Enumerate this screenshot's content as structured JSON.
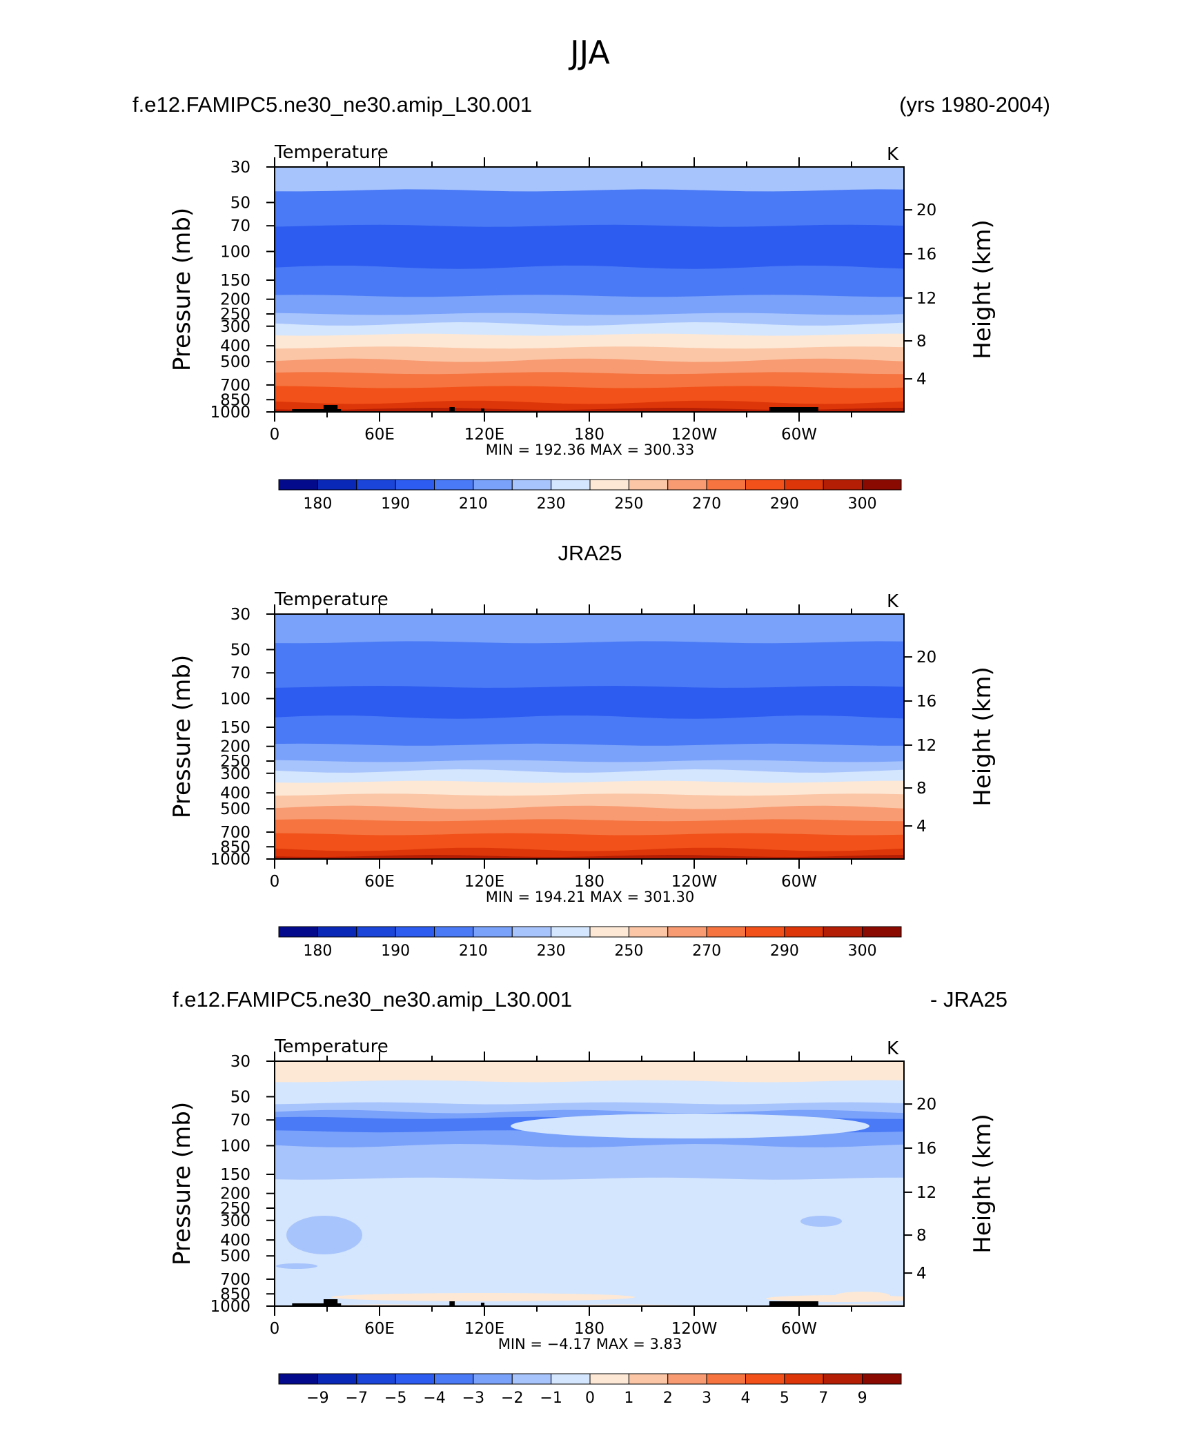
{
  "figure": {
    "season_title": "JJA"
  },
  "chart_data": [
    {
      "type": "heatmap",
      "header_left": "f.e12.FAMIPC5.ne30_ne30.amip_L30.001",
      "header_right": "(yrs 1980-2004)",
      "variable": "Temperature",
      "units": "K",
      "ylabel": "Pressure  (mb)",
      "ylabel_right": "Height  (km)",
      "xticks": [
        "0",
        "60E",
        "120E",
        "180",
        "120W",
        "60W"
      ],
      "pressure_ticks": [
        "30",
        "50",
        "70",
        "100",
        "150",
        "200",
        "250",
        "300",
        "400",
        "500",
        "700",
        "850",
        "1000"
      ],
      "height_ticks": [
        "20",
        "16",
        "12",
        "8",
        "4"
      ],
      "ylim_mb": [
        30,
        1000
      ],
      "stats_text": "MIN = 192.36   MAX = 300.33",
      "min": 192.36,
      "max": 300.33,
      "colorbar_labels": [
        "180",
        "190",
        "210",
        "230",
        "250",
        "270",
        "290",
        "300"
      ],
      "colorbar_colors": [
        "#030b8c",
        "#0a28b8",
        "#1a45d8",
        "#2d5cf0",
        "#4a7af6",
        "#7aa2fa",
        "#a8c4fc",
        "#d4e6fd",
        "#fde8d6",
        "#fbc6a6",
        "#f89b72",
        "#f5743f",
        "#f25119",
        "#dd3609",
        "#b41e04",
        "#8a0a02"
      ],
      "layers": [
        {
          "p": 30,
          "class": 6
        },
        {
          "p": 42,
          "class": 4
        },
        {
          "p": 70,
          "class": 3
        },
        {
          "p": 125,
          "class": 4
        },
        {
          "p": 190,
          "class": 5
        },
        {
          "p": 250,
          "class": 6
        },
        {
          "p": 290,
          "class": 7
        },
        {
          "p": 340,
          "class": 8
        },
        {
          "p": 410,
          "class": 9
        },
        {
          "p": 490,
          "class": 10
        },
        {
          "p": 590,
          "class": 11
        },
        {
          "p": 720,
          "class": 12
        },
        {
          "p": 880,
          "class": 13
        },
        {
          "p": 960,
          "class": 14
        }
      ]
    },
    {
      "type": "heatmap",
      "header_center": "JRA25",
      "variable": "Temperature",
      "units": "K",
      "ylabel": "Pressure  (mb)",
      "ylabel_right": "Height  (km)",
      "xticks": [
        "0",
        "60E",
        "120E",
        "180",
        "120W",
        "60W"
      ],
      "pressure_ticks": [
        "30",
        "50",
        "70",
        "100",
        "150",
        "200",
        "250",
        "300",
        "400",
        "500",
        "700",
        "850",
        "1000"
      ],
      "height_ticks": [
        "20",
        "16",
        "12",
        "8",
        "4"
      ],
      "ylim_mb": [
        30,
        1000
      ],
      "stats_text": "MIN = 194.21   MAX = 301.30",
      "min": 194.21,
      "max": 301.3,
      "colorbar_labels": [
        "180",
        "190",
        "210",
        "230",
        "250",
        "270",
        "290",
        "300"
      ],
      "colorbar_colors": [
        "#030b8c",
        "#0a28b8",
        "#1a45d8",
        "#2d5cf0",
        "#4a7af6",
        "#7aa2fa",
        "#a8c4fc",
        "#d4e6fd",
        "#fde8d6",
        "#fbc6a6",
        "#f89b72",
        "#f5743f",
        "#f25119",
        "#dd3609",
        "#b41e04",
        "#8a0a02"
      ],
      "layers": [
        {
          "p": 30,
          "class": 5
        },
        {
          "p": 45,
          "class": 4
        },
        {
          "p": 85,
          "class": 3
        },
        {
          "p": 130,
          "class": 4
        },
        {
          "p": 195,
          "class": 5
        },
        {
          "p": 250,
          "class": 6
        },
        {
          "p": 290,
          "class": 7
        },
        {
          "p": 340,
          "class": 8
        },
        {
          "p": 410,
          "class": 9
        },
        {
          "p": 490,
          "class": 10
        },
        {
          "p": 590,
          "class": 11
        },
        {
          "p": 720,
          "class": 12
        },
        {
          "p": 880,
          "class": 13
        },
        {
          "p": 960,
          "class": 14
        }
      ]
    },
    {
      "type": "heatmap",
      "header_left": "f.e12.FAMIPC5.ne30_ne30.amip_L30.001",
      "header_right": "- JRA25",
      "variable": "Temperature",
      "units": "K",
      "ylabel": "Pressure  (mb)",
      "ylabel_right": "Height  (km)",
      "xticks": [
        "0",
        "60E",
        "120E",
        "180",
        "120W",
        "60W"
      ],
      "pressure_ticks": [
        "30",
        "50",
        "70",
        "100",
        "150",
        "200",
        "250",
        "300",
        "400",
        "500",
        "700",
        "850",
        "1000"
      ],
      "height_ticks": [
        "20",
        "16",
        "12",
        "8",
        "4"
      ],
      "ylim_mb": [
        30,
        1000
      ],
      "stats_text": "MIN =    −4.17   MAX =      3.83",
      "min": -4.17,
      "max": 3.83,
      "colorbar_labels": [
        "−9",
        "−7",
        "−5",
        "−4",
        "−3",
        "−2",
        "−1",
        "0",
        "1",
        "2",
        "3",
        "4",
        "5",
        "7",
        "9"
      ],
      "colorbar_colors": [
        "#030b8c",
        "#0a28b8",
        "#1a45d8",
        "#2d5cf0",
        "#4a7af6",
        "#7aa2fa",
        "#a8c4fc",
        "#d4e6fd",
        "#fde8d6",
        "#fbc6a6",
        "#f89b72",
        "#f5743f",
        "#f25119",
        "#dd3609",
        "#b41e04",
        "#8a0a02"
      ],
      "layers": [
        {
          "p": 30,
          "class": 8
        },
        {
          "p": 40,
          "class": 7
        },
        {
          "p": 55,
          "class": 6
        },
        {
          "p": 62,
          "class": 5
        },
        {
          "p": 68,
          "class": 4
        },
        {
          "p": 82,
          "class": 5
        },
        {
          "p": 100,
          "class": 6
        },
        {
          "p": 160,
          "class": 7
        },
        {
          "p": 990,
          "class": 8
        }
      ]
    }
  ]
}
